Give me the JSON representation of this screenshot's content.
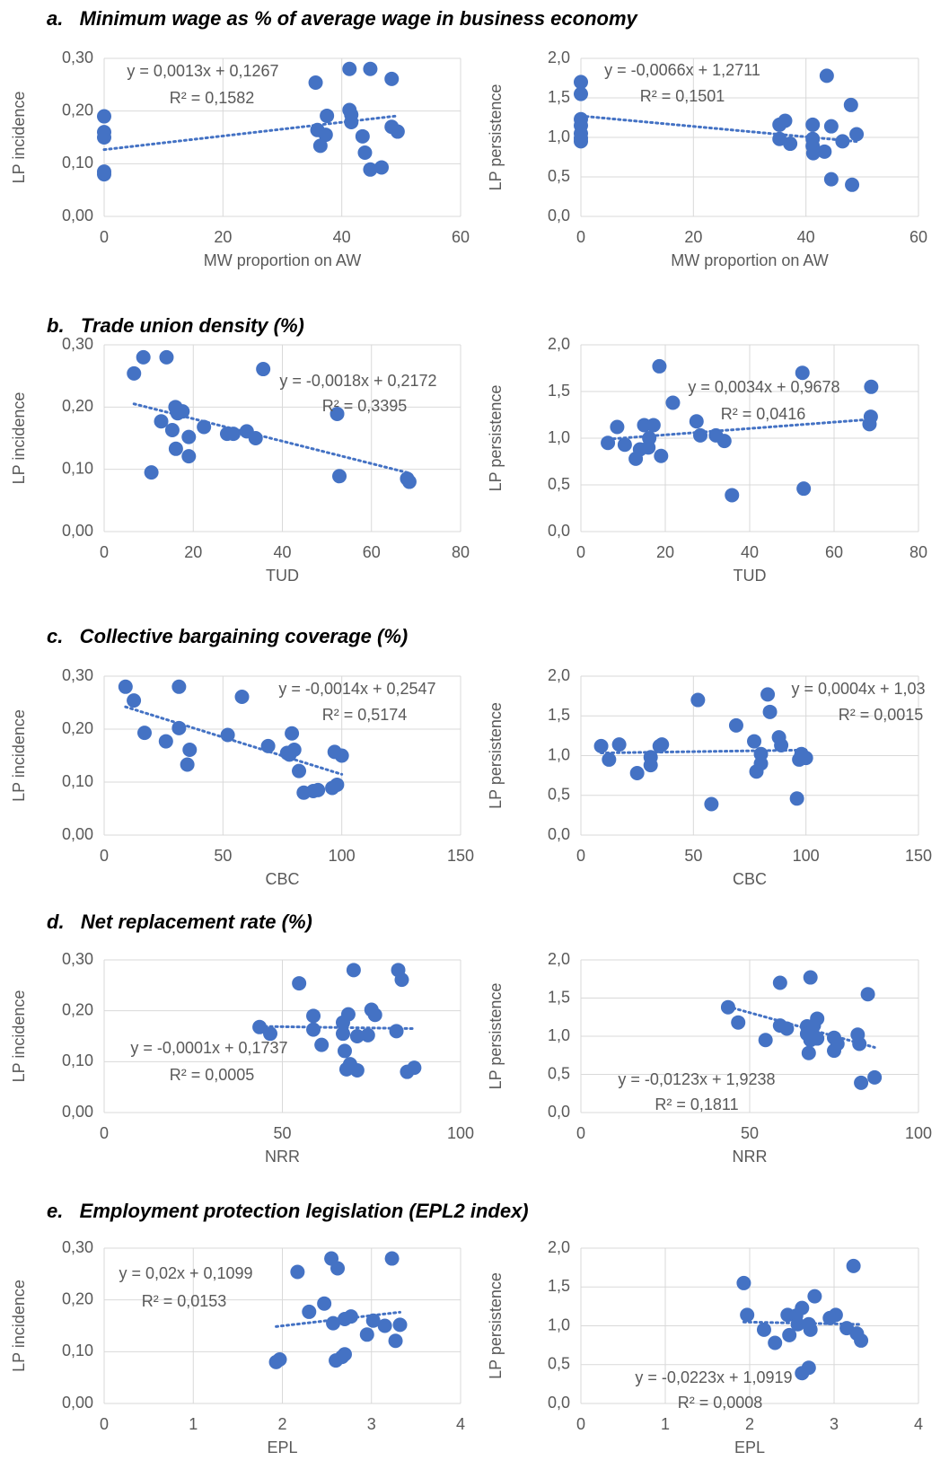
{
  "chart_data": [
    {
      "type": "scatter",
      "title": "a.   Minimum wage as % of average wage in business economy",
      "xlabel": "MW proportion on AW",
      "ylabel": "LP incidence",
      "color": "#4472c4",
      "grid": true,
      "x": [
        0,
        0,
        0,
        0,
        0,
        35.6,
        35.9,
        37.3,
        37.5,
        36.4,
        41.3,
        41.3,
        41.6,
        41.6,
        44.8,
        43.5,
        43.9,
        44.8,
        46.7,
        48.4,
        48.4,
        49.4
      ],
      "values": [
        0.19,
        0.16,
        0.15,
        0.085,
        0.08,
        0.254,
        0.164,
        0.155,
        0.191,
        0.134,
        0.28,
        0.202,
        0.193,
        0.179,
        0.28,
        0.152,
        0.121,
        0.089,
        0.093,
        0.261,
        0.17,
        0.161
      ],
      "xlim": [
        0,
        60
      ],
      "xticks": [
        0,
        20,
        40,
        60
      ],
      "ylim": [
        0,
        0.3
      ],
      "yticks": [
        {
          "value": 0,
          "label": "0,00"
        },
        {
          "value": 0.1,
          "label": "0,10"
        },
        {
          "value": 0.2,
          "label": "0,20"
        },
        {
          "value": 0.3,
          "label": "0,30"
        }
      ],
      "trendline": {
        "label": "y = 0,0013x + 0,1267",
        "r2_label": "R² = 0,1582",
        "slope": 0.0013,
        "intercept": 0.1267
      }
    },
    {
      "type": "scatter",
      "xlabel": "MW proportion on AW",
      "ylabel": "LP persistence",
      "color": "#4472c4",
      "grid": true,
      "x": [
        0,
        0,
        0,
        0,
        0,
        0,
        0,
        35.3,
        36.3,
        35.3,
        37.2,
        41.2,
        41.2,
        41.2,
        41.3,
        43.3,
        43.7,
        44.5,
        44.5,
        46.5,
        48,
        48.2,
        49
      ],
      "values": [
        1.7,
        1.55,
        1.23,
        1.15,
        1.05,
        0.99,
        0.95,
        1.16,
        1.21,
        0.98,
        0.92,
        1.16,
        0.98,
        0.89,
        0.8,
        0.82,
        1.78,
        1.14,
        0.47,
        0.95,
        1.41,
        0.4,
        1.04
      ],
      "xlim": [
        0,
        60
      ],
      "xticks": [
        0,
        20,
        40,
        60
      ],
      "ylim": [
        0,
        2
      ],
      "yticks": [
        {
          "value": 0,
          "label": "0,0"
        },
        {
          "value": 0.5,
          "label": "0,5"
        },
        {
          "value": 1,
          "label": "1,0"
        },
        {
          "value": 1.5,
          "label": "1,5"
        },
        {
          "value": 2,
          "label": "2,0"
        }
      ],
      "trendline": {
        "label": "y = -0,0066x + 1,2711",
        "r2_label": "R² = 0,1501",
        "slope": -0.0066,
        "intercept": 1.2711
      }
    },
    {
      "type": "scatter",
      "title": "b.   Trade union density (%)",
      "xlabel": "TUD",
      "ylabel": "LP incidence",
      "color": "#4472c4",
      "grid": true,
      "x": [
        6.7,
        8.8,
        14,
        10.6,
        12.8,
        15.3,
        16,
        16.5,
        16.1,
        17.6,
        19,
        19,
        22.4,
        27.6,
        29,
        32,
        34,
        35.7,
        52.3,
        52.8,
        68,
        68.5
      ],
      "values": [
        0.254,
        0.28,
        0.28,
        0.095,
        0.177,
        0.163,
        0.2,
        0.19,
        0.133,
        0.193,
        0.152,
        0.121,
        0.168,
        0.157,
        0.157,
        0.161,
        0.15,
        0.261,
        0.189,
        0.089,
        0.085,
        0.08
      ],
      "xlim": [
        0,
        80
      ],
      "xticks": [
        0,
        20,
        40,
        60,
        80
      ],
      "ylim": [
        0,
        0.3
      ],
      "yticks": [
        {
          "value": 0,
          "label": "0,00"
        },
        {
          "value": 0.1,
          "label": "0,10"
        },
        {
          "value": 0.2,
          "label": "0,20"
        },
        {
          "value": 0.3,
          "label": "0,30"
        }
      ],
      "trendline": {
        "label": "y = -0,0018x + 0,2172",
        "r2_label": "R² = 0,3395",
        "slope": -0.0018,
        "intercept": 0.2172
      }
    },
    {
      "type": "scatter",
      "xlabel": "TUD",
      "ylabel": "LP persistence",
      "color": "#4472c4",
      "grid": true,
      "x": [
        6.4,
        8.6,
        10.4,
        13,
        14,
        15,
        16,
        16.2,
        17.2,
        18.6,
        19,
        21.8,
        27.4,
        28.3,
        32,
        34,
        35.8,
        52.5,
        52.8,
        68.4,
        68.7,
        68.8
      ],
      "values": [
        0.95,
        1.12,
        0.93,
        0.78,
        0.88,
        1.14,
        0.9,
        1,
        1.14,
        1.77,
        0.81,
        1.38,
        1.18,
        1.03,
        1.03,
        0.97,
        0.39,
        1.7,
        0.46,
        1.15,
        1.23,
        1.55
      ],
      "xlim": [
        0,
        80
      ],
      "xticks": [
        0,
        20,
        40,
        60,
        80
      ],
      "ylim": [
        0,
        2
      ],
      "yticks": [
        {
          "value": 0,
          "label": "0,0"
        },
        {
          "value": 0.5,
          "label": "0,5"
        },
        {
          "value": 1,
          "label": "1,0"
        },
        {
          "value": 1.5,
          "label": "1,5"
        },
        {
          "value": 2,
          "label": "2,0"
        }
      ],
      "trendline": {
        "label": "y = 0,0034x + 0,9678",
        "r2_label": "R² = 0,0416",
        "slope": 0.0034,
        "intercept": 0.9678
      }
    },
    {
      "type": "scatter",
      "title": "c.   Collective bargaining coverage (%)",
      "xlabel": "CBC",
      "ylabel": "LP incidence",
      "color": "#4472c4",
      "grid": true,
      "x": [
        9,
        12.5,
        17,
        26,
        31.5,
        31.5,
        35,
        36,
        52,
        58,
        69,
        77,
        78,
        79,
        80,
        82,
        84,
        88,
        90,
        96,
        97,
        98,
        100
      ],
      "values": [
        0.28,
        0.254,
        0.193,
        0.177,
        0.28,
        0.202,
        0.133,
        0.161,
        0.189,
        0.261,
        0.168,
        0.155,
        0.152,
        0.192,
        0.161,
        0.121,
        0.08,
        0.083,
        0.085,
        0.089,
        0.157,
        0.095,
        0.15
      ],
      "xlim": [
        0,
        150
      ],
      "xticks": [
        0,
        50,
        100,
        150
      ],
      "ylim": [
        0,
        0.3
      ],
      "yticks": [
        {
          "value": 0,
          "label": "0,00"
        },
        {
          "value": 0.1,
          "label": "0,10"
        },
        {
          "value": 0.2,
          "label": "0,20"
        },
        {
          "value": 0.3,
          "label": "0,30"
        }
      ],
      "trendline": {
        "label": "y = -0,0014x + 0,2547",
        "r2_label": "R² = 0,5174",
        "slope": -0.0014,
        "intercept": 0.2547
      }
    },
    {
      "type": "scatter",
      "xlabel": "CBC",
      "ylabel": "LP persistence",
      "color": "#4472c4",
      "grid": true,
      "x": [
        9,
        12.5,
        17,
        25,
        31,
        31,
        35,
        36,
        52,
        58,
        69,
        77,
        78,
        80,
        80,
        83,
        84,
        88,
        89,
        96,
        97,
        98,
        100
      ],
      "values": [
        1.12,
        0.95,
        1.14,
        0.78,
        0.98,
        0.88,
        1.12,
        1.14,
        1.7,
        0.39,
        1.38,
        1.18,
        0.8,
        0.9,
        1.02,
        1.77,
        1.55,
        1.23,
        1.13,
        0.46,
        0.95,
        1.02,
        0.97
      ],
      "xlim": [
        0,
        150
      ],
      "xticks": [
        0,
        50,
        100,
        150
      ],
      "ylim": [
        0,
        2
      ],
      "yticks": [
        {
          "value": 0,
          "label": "0,0"
        },
        {
          "value": 0.5,
          "label": "0,5"
        },
        {
          "value": 1,
          "label": "1,0"
        },
        {
          "value": 1.5,
          "label": "1,5"
        },
        {
          "value": 2,
          "label": "2,0"
        }
      ],
      "trendline": {
        "label": "y = 0,0004x + 1,03",
        "r2_label": "R² = 0,0015",
        "slope": 0.0004,
        "intercept": 1.03
      }
    },
    {
      "type": "scatter",
      "title": "d.   Net replacement rate (%)",
      "xlabel": "NRR",
      "ylabel": "LP incidence",
      "color": "#4472c4",
      "grid": true,
      "x": [
        43.6,
        46.6,
        54.7,
        58.7,
        58.7,
        61,
        67,
        67,
        67.5,
        68,
        68.5,
        69,
        70,
        71,
        71,
        74,
        75,
        76,
        82,
        82.5,
        83.5,
        85,
        87
      ],
      "values": [
        0.168,
        0.155,
        0.254,
        0.19,
        0.163,
        0.133,
        0.155,
        0.177,
        0.121,
        0.085,
        0.193,
        0.095,
        0.28,
        0.083,
        0.15,
        0.152,
        0.202,
        0.192,
        0.16,
        0.28,
        0.261,
        0.08,
        0.088
      ],
      "xlim": [
        0,
        100
      ],
      "xticks": [
        0,
        50,
        100
      ],
      "ylim": [
        0,
        0.3
      ],
      "yticks": [
        {
          "value": 0,
          "label": "0,00"
        },
        {
          "value": 0.1,
          "label": "0,10"
        },
        {
          "value": 0.2,
          "label": "0,20"
        },
        {
          "value": 0.3,
          "label": "0,30"
        }
      ],
      "trendline": {
        "label": "y = -0,0001x + 0,1737",
        "r2_label": "R² = 0,0005",
        "slope": -0.0001,
        "intercept": 0.1737
      }
    },
    {
      "type": "scatter",
      "xlabel": "NRR",
      "ylabel": "LP persistence",
      "color": "#4472c4",
      "grid": true,
      "x": [
        43.6,
        46.6,
        54.7,
        59,
        59,
        61,
        67,
        67,
        67.5,
        68,
        68,
        68.5,
        69,
        70,
        70,
        75,
        75,
        76,
        82,
        82.5,
        83,
        85,
        87
      ],
      "values": [
        1.38,
        1.18,
        0.95,
        1.7,
        1.14,
        1.1,
        1.13,
        1.03,
        0.78,
        0.95,
        1.77,
        1.07,
        1.14,
        1.23,
        0.97,
        0.98,
        0.81,
        0.9,
        1.02,
        0.9,
        0.39,
        1.55,
        0.46
      ],
      "xlim": [
        0,
        100
      ],
      "xticks": [
        0,
        50,
        100
      ],
      "ylim": [
        0,
        2
      ],
      "yticks": [
        {
          "value": 0,
          "label": "0,0"
        },
        {
          "value": 0.5,
          "label": "0,5"
        },
        {
          "value": 1,
          "label": "1,0"
        },
        {
          "value": 1.5,
          "label": "1,5"
        },
        {
          "value": 2,
          "label": "2,0"
        }
      ],
      "trendline": {
        "label": "y = -0,0123x + 1,9238",
        "r2_label": "R² = 0,1811",
        "slope": -0.0123,
        "intercept": 1.9238
      }
    },
    {
      "type": "scatter",
      "title": "e.   Employment protection legislation (EPL2 index)",
      "xlabel": "EPL",
      "ylabel": "LP incidence",
      "color": "#4472c4",
      "grid": true,
      "x": [
        1.93,
        1.97,
        2.17,
        2.3,
        2.47,
        2.57,
        2.55,
        2.62,
        2.6,
        2.67,
        2.7,
        2.7,
        2.77,
        2.95,
        3.02,
        3.15,
        3.23,
        3.27,
        3.32
      ],
      "values": [
        0.08,
        0.085,
        0.254,
        0.177,
        0.193,
        0.155,
        0.28,
        0.261,
        0.083,
        0.09,
        0.095,
        0.163,
        0.168,
        0.133,
        0.16,
        0.15,
        0.28,
        0.121,
        0.152
      ],
      "xlim": [
        0,
        4
      ],
      "xticks": [
        0,
        1,
        2,
        3,
        4
      ],
      "ylim": [
        0,
        0.3
      ],
      "yticks": [
        {
          "value": 0,
          "label": "0,00"
        },
        {
          "value": 0.1,
          "label": "0,10"
        },
        {
          "value": 0.2,
          "label": "0,20"
        },
        {
          "value": 0.3,
          "label": "0,30"
        }
      ],
      "trendline": {
        "label": "y = 0,02x + 0,1099",
        "r2_label": "R² = 0,0153",
        "slope": 0.02,
        "intercept": 0.1099
      }
    },
    {
      "type": "scatter",
      "xlabel": "EPL",
      "ylabel": "LP persistence",
      "color": "#4472c4",
      "grid": true,
      "x": [
        1.93,
        1.97,
        2.17,
        2.3,
        2.45,
        2.47,
        2.55,
        2.57,
        2.62,
        2.62,
        2.7,
        2.7,
        2.72,
        2.77,
        2.95,
        3.02,
        3.15,
        3.23,
        3.27,
        3.32
      ],
      "values": [
        1.55,
        1.14,
        0.95,
        0.78,
        1.14,
        0.88,
        1.13,
        1.02,
        1.23,
        0.39,
        0.46,
        1.02,
        0.95,
        1.38,
        1.1,
        1.14,
        0.97,
        1.77,
        0.9,
        0.81
      ],
      "xlim": [
        0,
        4
      ],
      "xticks": [
        0,
        1,
        2,
        3,
        4
      ],
      "ylim": [
        0,
        2
      ],
      "yticks": [
        {
          "value": 0,
          "label": "0,0"
        },
        {
          "value": 0.5,
          "label": "0,5"
        },
        {
          "value": 1,
          "label": "1,0"
        },
        {
          "value": 1.5,
          "label": "1,5"
        },
        {
          "value": 2,
          "label": "2,0"
        }
      ],
      "trendline": {
        "label": "y = -0,0223x + 1,0919",
        "r2_label": "R² = 0,0008",
        "slope": -0.0223,
        "intercept": 1.0919
      }
    }
  ]
}
